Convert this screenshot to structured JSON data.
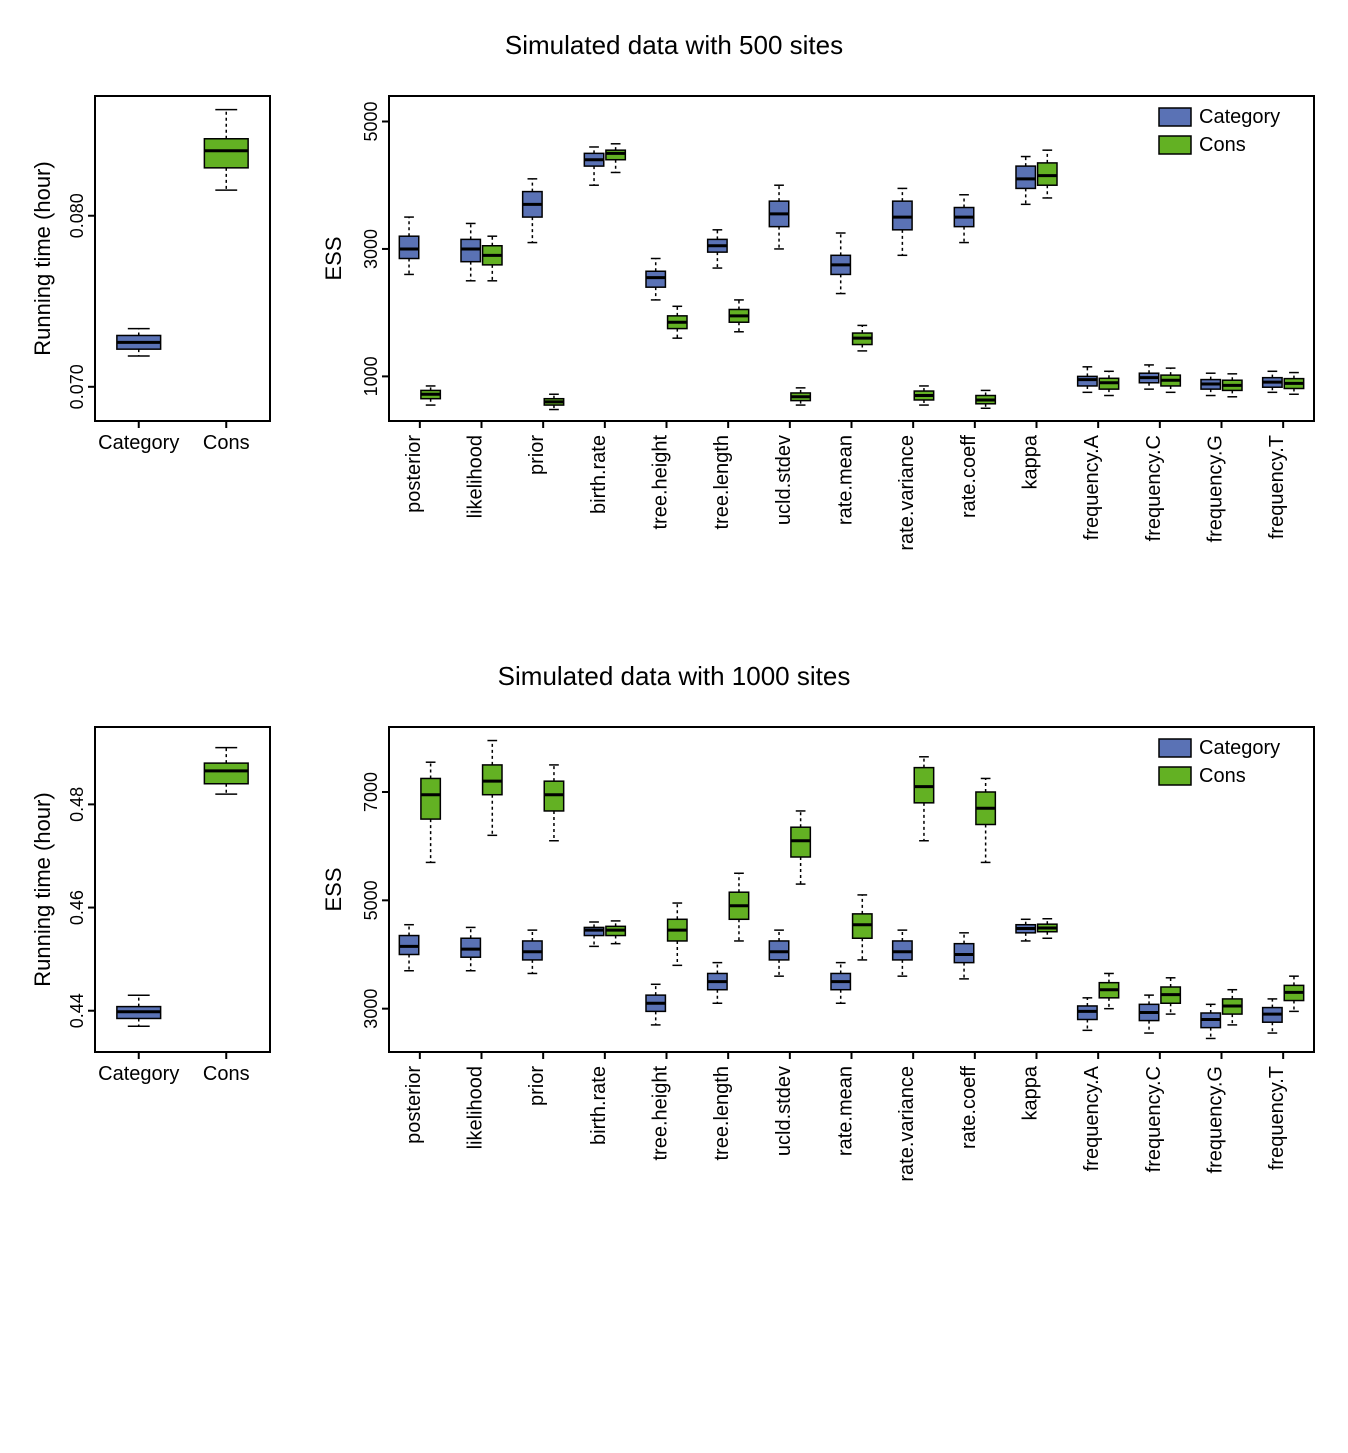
{
  "colors": {
    "category": "#5a72b5",
    "cons": "#63b123",
    "bg": "#ffffff",
    "axis": "#000000"
  },
  "fonts": {
    "title_size": 26,
    "axis_label_size": 22,
    "tick_size": 18,
    "cat_label_size": 20,
    "legend_size": 20
  },
  "legend": {
    "items": [
      {
        "label": "Category",
        "color_key": "category"
      },
      {
        "label": "Cons",
        "color_key": "cons"
      }
    ]
  },
  "panels": [
    {
      "title": "Simulated data with 500 sites",
      "small": {
        "ylabel": "Running time (hour)",
        "ylim": [
          0.068,
          0.087
        ],
        "yticks": [
          0.07,
          0.08
        ],
        "ytick_labels": [
          "0.070",
          "0.080"
        ],
        "categories": [
          "Category",
          "Cons"
        ],
        "boxes": [
          {
            "label": "Category",
            "color_key": "category",
            "min": 0.0718,
            "q1": 0.0722,
            "med": 0.0726,
            "q3": 0.073,
            "max": 0.0734
          },
          {
            "label": "Cons",
            "color_key": "cons",
            "min": 0.0815,
            "q1": 0.0828,
            "med": 0.0838,
            "q3": 0.0845,
            "max": 0.0862
          }
        ]
      },
      "big": {
        "ylabel": "ESS",
        "ylim": [
          300,
          5400
        ],
        "yticks": [
          1000,
          3000,
          5000
        ],
        "ytick_labels": [
          "1000",
          "3000",
          "5000"
        ],
        "categories": [
          "posterior",
          "likelihood",
          "prior",
          "birth.rate",
          "tree.height",
          "tree.length",
          "ucld.stdev",
          "rate.mean",
          "rate.variance",
          "rate.coeff",
          "kappa",
          "frequency.A",
          "frequency.C",
          "frequency.G",
          "frequency.T"
        ],
        "series": [
          {
            "name": "Category",
            "color_key": "category",
            "boxes": [
              {
                "min": 2600,
                "q1": 2850,
                "med": 3000,
                "q3": 3200,
                "max": 3500
              },
              {
                "min": 2500,
                "q1": 2800,
                "med": 3000,
                "q3": 3150,
                "max": 3400
              },
              {
                "min": 3100,
                "q1": 3500,
                "med": 3700,
                "q3": 3900,
                "max": 4100
              },
              {
                "min": 4000,
                "q1": 4300,
                "med": 4400,
                "q3": 4500,
                "max": 4600
              },
              {
                "min": 2200,
                "q1": 2400,
                "med": 2550,
                "q3": 2650,
                "max": 2850
              },
              {
                "min": 2700,
                "q1": 2950,
                "med": 3050,
                "q3": 3150,
                "max": 3300
              },
              {
                "min": 3000,
                "q1": 3350,
                "med": 3550,
                "q3": 3750,
                "max": 4000
              },
              {
                "min": 2300,
                "q1": 2600,
                "med": 2750,
                "q3": 2900,
                "max": 3250
              },
              {
                "min": 2900,
                "q1": 3300,
                "med": 3500,
                "q3": 3750,
                "max": 3950
              },
              {
                "min": 3100,
                "q1": 3350,
                "med": 3500,
                "q3": 3650,
                "max": 3850
              },
              {
                "min": 3700,
                "q1": 3950,
                "med": 4100,
                "q3": 4300,
                "max": 4450
              },
              {
                "min": 750,
                "q1": 850,
                "med": 950,
                "q3": 1000,
                "max": 1150
              },
              {
                "min": 800,
                "q1": 900,
                "med": 980,
                "q3": 1050,
                "max": 1180
              },
              {
                "min": 700,
                "q1": 800,
                "med": 880,
                "q3": 950,
                "max": 1050
              },
              {
                "min": 750,
                "q1": 830,
                "med": 910,
                "q3": 980,
                "max": 1080
              }
            ]
          },
          {
            "name": "Cons",
            "color_key": "cons",
            "boxes": [
              {
                "min": 550,
                "q1": 650,
                "med": 720,
                "q3": 780,
                "max": 850
              },
              {
                "min": 2500,
                "q1": 2750,
                "med": 2900,
                "q3": 3050,
                "max": 3200
              },
              {
                "min": 480,
                "q1": 550,
                "med": 600,
                "q3": 650,
                "max": 720
              },
              {
                "min": 4200,
                "q1": 4400,
                "med": 4500,
                "q3": 4550,
                "max": 4650
              },
              {
                "min": 1600,
                "q1": 1750,
                "med": 1850,
                "q3": 1950,
                "max": 2100
              },
              {
                "min": 1700,
                "q1": 1850,
                "med": 1950,
                "q3": 2050,
                "max": 2200
              },
              {
                "min": 550,
                "q1": 620,
                "med": 680,
                "q3": 740,
                "max": 820
              },
              {
                "min": 1400,
                "q1": 1500,
                "med": 1600,
                "q3": 1680,
                "max": 1800
              },
              {
                "min": 550,
                "q1": 630,
                "med": 700,
                "q3": 770,
                "max": 850
              },
              {
                "min": 500,
                "q1": 570,
                "med": 630,
                "q3": 700,
                "max": 780
              },
              {
                "min": 3800,
                "q1": 4000,
                "med": 4150,
                "q3": 4350,
                "max": 4550
              },
              {
                "min": 700,
                "q1": 800,
                "med": 900,
                "q3": 970,
                "max": 1080
              },
              {
                "min": 750,
                "q1": 850,
                "med": 940,
                "q3": 1020,
                "max": 1130
              },
              {
                "min": 680,
                "q1": 780,
                "med": 860,
                "q3": 940,
                "max": 1040
              },
              {
                "min": 720,
                "q1": 810,
                "med": 890,
                "q3": 965,
                "max": 1060
              }
            ]
          }
        ]
      }
    },
    {
      "title": "Simulated data with 1000 sites",
      "small": {
        "ylabel": "Running time (hour)",
        "ylim": [
          0.432,
          0.495
        ],
        "yticks": [
          0.44,
          0.46,
          0.48
        ],
        "ytick_labels": [
          "0.44",
          "0.46",
          "0.48"
        ],
        "categories": [
          "Category",
          "Cons"
        ],
        "boxes": [
          {
            "label": "Category",
            "color_key": "category",
            "min": 0.437,
            "q1": 0.4385,
            "med": 0.4398,
            "q3": 0.4408,
            "max": 0.443
          },
          {
            "label": "Cons",
            "color_key": "cons",
            "min": 0.482,
            "q1": 0.484,
            "med": 0.4865,
            "q3": 0.488,
            "max": 0.491
          }
        ]
      },
      "big": {
        "ylabel": "ESS",
        "ylim": [
          2200,
          8200
        ],
        "yticks": [
          3000,
          5000,
          7000
        ],
        "ytick_labels": [
          "3000",
          "5000",
          "7000"
        ],
        "categories": [
          "posterior",
          "likelihood",
          "prior",
          "birth.rate",
          "tree.height",
          "tree.length",
          "ucld.stdev",
          "rate.mean",
          "rate.variance",
          "rate.coeff",
          "kappa",
          "frequency.A",
          "frequency.C",
          "frequency.G",
          "frequency.T"
        ],
        "series": [
          {
            "name": "Category",
            "color_key": "category",
            "boxes": [
              {
                "min": 3700,
                "q1": 4000,
                "med": 4150,
                "q3": 4350,
                "max": 4550
              },
              {
                "min": 3700,
                "q1": 3950,
                "med": 4100,
                "q3": 4300,
                "max": 4500
              },
              {
                "min": 3650,
                "q1": 3900,
                "med": 4050,
                "q3": 4250,
                "max": 4450
              },
              {
                "min": 4150,
                "q1": 4350,
                "med": 4450,
                "q3": 4500,
                "max": 4600
              },
              {
                "min": 2700,
                "q1": 2950,
                "med": 3100,
                "q3": 3250,
                "max": 3450
              },
              {
                "min": 3100,
                "q1": 3350,
                "med": 3500,
                "q3": 3650,
                "max": 3850
              },
              {
                "min": 3600,
                "q1": 3900,
                "med": 4050,
                "q3": 4250,
                "max": 4450
              },
              {
                "min": 3100,
                "q1": 3350,
                "med": 3500,
                "q3": 3650,
                "max": 3850
              },
              {
                "min": 3600,
                "q1": 3900,
                "med": 4050,
                "q3": 4250,
                "max": 4450
              },
              {
                "min": 3550,
                "q1": 3850,
                "med": 4000,
                "q3": 4200,
                "max": 4400
              },
              {
                "min": 4250,
                "q1": 4400,
                "med": 4480,
                "q3": 4550,
                "max": 4650
              },
              {
                "min": 2600,
                "q1": 2800,
                "med": 2950,
                "q3": 3050,
                "max": 3200
              },
              {
                "min": 2550,
                "q1": 2780,
                "med": 2930,
                "q3": 3080,
                "max": 3250
              },
              {
                "min": 2450,
                "q1": 2650,
                "med": 2800,
                "q3": 2920,
                "max": 3080
              },
              {
                "min": 2550,
                "q1": 2750,
                "med": 2900,
                "q3": 3020,
                "max": 3180
              }
            ]
          },
          {
            "name": "Cons",
            "color_key": "cons",
            "boxes": [
              {
                "min": 5700,
                "q1": 6500,
                "med": 6950,
                "q3": 7250,
                "max": 7550
              },
              {
                "min": 6200,
                "q1": 6950,
                "med": 7200,
                "q3": 7500,
                "max": 7950
              },
              {
                "min": 6100,
                "q1": 6650,
                "med": 6950,
                "q3": 7200,
                "max": 7500
              },
              {
                "min": 4200,
                "q1": 4350,
                "med": 4450,
                "q3": 4520,
                "max": 4620
              },
              {
                "min": 3800,
                "q1": 4250,
                "med": 4450,
                "q3": 4650,
                "max": 4950
              },
              {
                "min": 4250,
                "q1": 4650,
                "med": 4900,
                "q3": 5150,
                "max": 5500
              },
              {
                "min": 5300,
                "q1": 5800,
                "med": 6100,
                "q3": 6350,
                "max": 6650
              },
              {
                "min": 3900,
                "q1": 4300,
                "med": 4550,
                "q3": 4750,
                "max": 5100
              },
              {
                "min": 6100,
                "q1": 6800,
                "med": 7100,
                "q3": 7450,
                "max": 7650
              },
              {
                "min": 5700,
                "q1": 6400,
                "med": 6700,
                "q3": 7000,
                "max": 7250
              },
              {
                "min": 4300,
                "q1": 4420,
                "med": 4490,
                "q3": 4560,
                "max": 4660
              },
              {
                "min": 3000,
                "q1": 3200,
                "med": 3350,
                "q3": 3480,
                "max": 3650
              },
              {
                "min": 2900,
                "q1": 3100,
                "med": 3260,
                "q3": 3400,
                "max": 3570
              },
              {
                "min": 2700,
                "q1": 2900,
                "med": 3050,
                "q3": 3180,
                "max": 3350
              },
              {
                "min": 2950,
                "q1": 3150,
                "med": 3300,
                "q3": 3430,
                "max": 3600
              }
            ]
          }
        ]
      }
    }
  ]
}
